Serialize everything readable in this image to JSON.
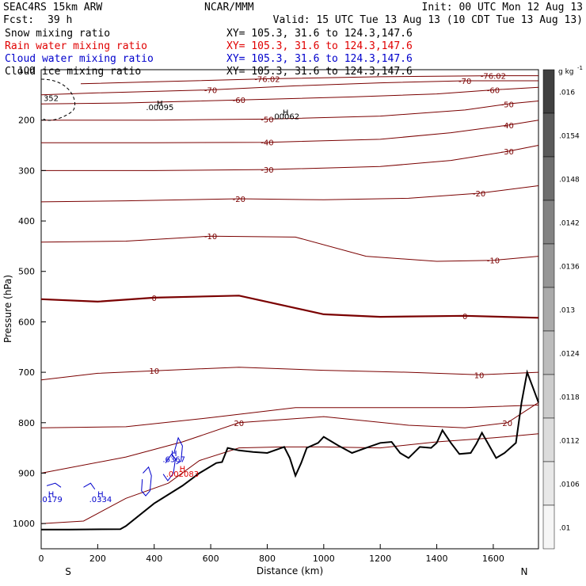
{
  "header": {
    "model": "SEAC4RS 15km ARW",
    "center": "NCAR/MMM",
    "init": "Init: 00 UTC Mon 12 Aug 13",
    "fcst_label": "Fcst:",
    "fcst_value": "39 h",
    "valid": "Valid: 15 UTC Tue 13 Aug 13 (10 CDT Tue 13 Aug 13)"
  },
  "fields": [
    {
      "name": "Snow mixing ratio",
      "xy": "XY= 105.3, 31.6 to 124.3,147.6",
      "color": "#000000"
    },
    {
      "name": "Rain water mixing ratio",
      "xy": "XY= 105.3, 31.6 to 124.3,147.6",
      "color": "#e00000"
    },
    {
      "name": "Cloud water mixing ratio",
      "xy": "XY= 105.3, 31.6 to 124.3,147.6",
      "color": "#0000cc"
    },
    {
      "name": "Cloud ice mixing ratio",
      "xy": "XY= 105.3, 31.6 to 124.3,147.6",
      "color": "#000000"
    }
  ],
  "chart_data": {
    "type": "contour-cross-section",
    "xlabel": "Distance (km)",
    "ylabel": "Pressure (hPa)",
    "xlim": [
      0,
      1760
    ],
    "ylim": [
      1050,
      100
    ],
    "x_ticks": [
      0,
      200,
      400,
      600,
      800,
      1000,
      1200,
      1400,
      1600
    ],
    "y_ticks": [
      200,
      300,
      400,
      500,
      600,
      700,
      800,
      900,
      1000
    ],
    "x_tick_labels": [
      "0",
      "200",
      "400",
      "600",
      "800",
      "1000",
      "1200",
      "1400",
      "1600"
    ],
    "y_tick_labels": [
      "200",
      "300",
      "400",
      "500",
      "600",
      "700",
      "800",
      "900",
      "1000"
    ],
    "y_extra_label": "100",
    "left_endpoint": "S",
    "right_endpoint": "N",
    "temperature_contours": [
      {
        "label": "-76.02",
        "points": [
          [
            140,
            128
          ],
          [
            400,
            124
          ],
          [
            800,
            118
          ],
          [
            1200,
            114
          ],
          [
            1600,
            112
          ],
          [
            1760,
            112
          ]
        ]
      },
      {
        "label": "-70",
        "points": [
          [
            0,
            150
          ],
          [
            200,
            146
          ],
          [
            600,
            140
          ],
          [
            900,
            132
          ],
          [
            1200,
            126
          ],
          [
            1500,
            122
          ],
          [
            1760,
            122
          ]
        ]
      },
      {
        "label": "-60",
        "points": [
          [
            0,
            168
          ],
          [
            300,
            166
          ],
          [
            700,
            160
          ],
          [
            1100,
            154
          ],
          [
            1400,
            148
          ],
          [
            1600,
            140
          ],
          [
            1760,
            135
          ]
        ]
      },
      {
        "label": "-50",
        "points": [
          [
            0,
            200
          ],
          [
            400,
            200
          ],
          [
            800,
            198
          ],
          [
            1200,
            192
          ],
          [
            1500,
            180
          ],
          [
            1650,
            168
          ],
          [
            1760,
            162
          ]
        ]
      },
      {
        "label": "-40",
        "points": [
          [
            0,
            245
          ],
          [
            400,
            245
          ],
          [
            800,
            244
          ],
          [
            1200,
            238
          ],
          [
            1450,
            225
          ],
          [
            1650,
            210
          ],
          [
            1760,
            200
          ]
        ]
      },
      {
        "label": "-30",
        "points": [
          [
            0,
            300
          ],
          [
            400,
            300
          ],
          [
            800,
            298
          ],
          [
            1200,
            292
          ],
          [
            1450,
            280
          ],
          [
            1650,
            262
          ],
          [
            1760,
            250
          ]
        ]
      },
      {
        "label": "-20",
        "points": [
          [
            0,
            362
          ],
          [
            300,
            360
          ],
          [
            700,
            356
          ],
          [
            1000,
            358
          ],
          [
            1300,
            355
          ],
          [
            1550,
            345
          ],
          [
            1760,
            330
          ]
        ]
      },
      {
        "label": "-10",
        "points": [
          [
            0,
            442
          ],
          [
            300,
            440
          ],
          [
            600,
            430
          ],
          [
            900,
            432
          ],
          [
            1150,
            470
          ],
          [
            1400,
            480
          ],
          [
            1600,
            478
          ],
          [
            1760,
            470
          ]
        ]
      },
      {
        "label": "0",
        "points": [
          [
            0,
            555
          ],
          [
            200,
            560
          ],
          [
            400,
            552
          ],
          [
            700,
            548
          ],
          [
            1000,
            585
          ],
          [
            1200,
            590
          ],
          [
            1500,
            588
          ],
          [
            1760,
            592
          ]
        ]
      },
      {
        "label": "10",
        "points": [
          [
            0,
            715
          ],
          [
            200,
            702
          ],
          [
            400,
            697
          ],
          [
            700,
            690
          ],
          [
            1000,
            696
          ],
          [
            1300,
            700
          ],
          [
            1550,
            705
          ],
          [
            1760,
            700
          ]
        ]
      },
      {
        "label": "20",
        "points": [
          [
            0,
            900
          ],
          [
            300,
            868
          ],
          [
            500,
            838
          ],
          [
            700,
            800
          ],
          [
            1000,
            788
          ],
          [
            1300,
            805
          ],
          [
            1500,
            810
          ],
          [
            1650,
            800
          ],
          [
            1760,
            760
          ]
        ]
      }
    ],
    "extra_contours": [
      {
        "points": [
          [
            0,
            810
          ],
          [
            300,
            808
          ],
          [
            600,
            790
          ],
          [
            900,
            770
          ],
          [
            1200,
            770
          ],
          [
            1500,
            770
          ],
          [
            1760,
            765
          ]
        ]
      },
      {
        "points": [
          [
            0,
            1000
          ],
          [
            150,
            995
          ],
          [
            300,
            950
          ],
          [
            450,
            920
          ],
          [
            560,
            875
          ],
          [
            700,
            850
          ],
          [
            850,
            848
          ],
          [
            1000,
            848
          ],
          [
            1200,
            850
          ],
          [
            1400,
            838
          ],
          [
            1600,
            830
          ],
          [
            1760,
            822
          ]
        ]
      }
    ],
    "terrain": [
      [
        0,
        1012
      ],
      [
        100,
        1012
      ],
      [
        280,
        1011
      ],
      [
        300,
        1005
      ],
      [
        400,
        960
      ],
      [
        500,
        925
      ],
      [
        560,
        900
      ],
      [
        620,
        880
      ],
      [
        640,
        878
      ],
      [
        660,
        850
      ],
      [
        700,
        855
      ],
      [
        750,
        858
      ],
      [
        800,
        860
      ],
      [
        840,
        852
      ],
      [
        860,
        848
      ],
      [
        880,
        870
      ],
      [
        900,
        905
      ],
      [
        920,
        880
      ],
      [
        940,
        850
      ],
      [
        980,
        840
      ],
      [
        1000,
        828
      ],
      [
        1050,
        845
      ],
      [
        1100,
        860
      ],
      [
        1150,
        850
      ],
      [
        1200,
        840
      ],
      [
        1240,
        838
      ],
      [
        1270,
        860
      ],
      [
        1300,
        870
      ],
      [
        1340,
        848
      ],
      [
        1380,
        850
      ],
      [
        1400,
        840
      ],
      [
        1420,
        815
      ],
      [
        1450,
        840
      ],
      [
        1480,
        862
      ],
      [
        1520,
        860
      ],
      [
        1540,
        842
      ],
      [
        1560,
        820
      ],
      [
        1580,
        840
      ],
      [
        1610,
        870
      ],
      [
        1640,
        860
      ],
      [
        1680,
        840
      ],
      [
        1700,
        760
      ],
      [
        1720,
        700
      ],
      [
        1740,
        730
      ],
      [
        1760,
        760
      ]
    ],
    "cloud_water_contours": [
      {
        "points": [
          [
            360,
            900
          ],
          [
            380,
            888
          ],
          [
            390,
            905
          ],
          [
            385,
            935
          ],
          [
            370,
            945
          ],
          [
            355,
            935
          ],
          [
            358,
            912
          ]
        ]
      },
      {
        "points": [
          [
            440,
            880
          ],
          [
            462,
            862
          ],
          [
            475,
            872
          ],
          [
            468,
            900
          ],
          [
            448,
            915
          ],
          [
            432,
            902
          ]
        ]
      },
      {
        "points": [
          [
            470,
            860
          ],
          [
            485,
            830
          ],
          [
            500,
            846
          ],
          [
            495,
            876
          ],
          [
            478,
            882
          ]
        ]
      },
      {
        "points": [
          [
            150,
            928
          ],
          [
            175,
            920
          ],
          [
            190,
            932
          ]
        ]
      },
      {
        "points": [
          [
            20,
            925
          ],
          [
            50,
            920
          ],
          [
            70,
            928
          ]
        ]
      }
    ],
    "maxima_labels": [
      {
        "text": "H",
        "x": 420,
        "y": 172,
        "color": "#000000"
      },
      {
        "text": ".00095",
        "x": 420,
        "y": 180,
        "color": "#000000"
      },
      {
        "text": "H",
        "x": 865,
        "y": 190,
        "color": "#000000"
      },
      {
        "text": ".00062",
        "x": 865,
        "y": 198,
        "color": "#000000"
      },
      {
        "text": "H",
        "x": 470,
        "y": 866,
        "color": "#0000cc"
      },
      {
        "text": ".6367",
        "x": 470,
        "y": 878,
        "color": "#0000cc"
      },
      {
        "text": "H",
        "x": 500,
        "y": 897,
        "color": "#e00000"
      },
      {
        "text": ".002083",
        "x": 500,
        "y": 907,
        "color": "#e00000"
      },
      {
        "text": "H",
        "x": 35,
        "y": 947,
        "color": "#0000cc"
      },
      {
        "text": ".0179",
        "x": 35,
        "y": 957,
        "color": "#0000cc"
      },
      {
        "text": "H",
        "x": 210,
        "y": 947,
        "color": "#0000cc"
      },
      {
        "text": ".0334",
        "x": 210,
        "y": 957,
        "color": "#0000cc"
      },
      {
        "text": "352",
        "x": 35,
        "y": 162,
        "color": "#000000"
      }
    ],
    "colorbar": {
      "unit": "g kg",
      "unit_exponent": "-1",
      "labels": [
        ".016",
        ".0154",
        ".0148",
        ".0142",
        ".0136",
        ".013",
        ".0124",
        ".0118",
        ".0112",
        ".0106",
        ".01"
      ],
      "shades": [
        "#404040",
        "#5a5a5a",
        "#6e6e6e",
        "#828282",
        "#969696",
        "#aaaaaa",
        "#bcbcbc",
        "#cccccc",
        "#dcdcdc",
        "#e8e8e8",
        "#f6f6f6"
      ]
    }
  }
}
